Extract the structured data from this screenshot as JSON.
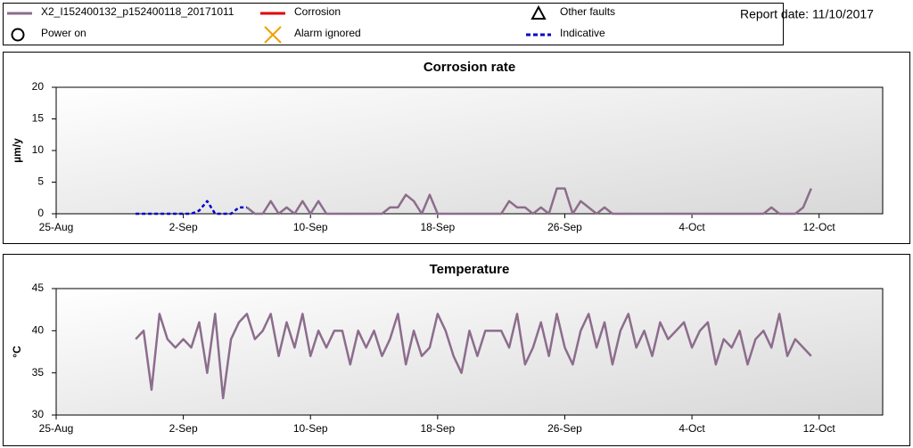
{
  "report_date": "Report date: 11/10/2017",
  "legend": {
    "items": [
      {
        "label": "X2_I152400132_p152400118_20171011",
        "symbol": "line",
        "color": "#8c6d8c"
      },
      {
        "label": "Corrosion",
        "symbol": "line",
        "color": "#e00000"
      },
      {
        "label": "Other faults",
        "symbol": "triangle",
        "color": "#000000"
      },
      {
        "label": "Power on",
        "symbol": "circle",
        "color": "#000000"
      },
      {
        "label": "Alarm ignored",
        "symbol": "cross",
        "color": "#f0a000"
      },
      {
        "label": "Indicative",
        "symbol": "dashed",
        "color": "#0000cc"
      }
    ]
  },
  "chart_data": [
    {
      "type": "line",
      "title": "Corrosion rate",
      "y_label": "µm/y",
      "xlim": [
        0,
        52
      ],
      "xticks": [
        {
          "value": 0,
          "label": "25-Aug"
        },
        {
          "value": 8,
          "label": "2-Sep"
        },
        {
          "value": 16,
          "label": "10-Sep"
        },
        {
          "value": 24,
          "label": "18-Sep"
        },
        {
          "value": 32,
          "label": "26-Sep"
        },
        {
          "value": 40,
          "label": "4-Oct"
        },
        {
          "value": 48,
          "label": "12-Oct"
        }
      ],
      "ylim": [
        0,
        20
      ],
      "yticks": [
        0,
        5,
        10,
        15,
        20
      ],
      "grid": false,
      "x": [
        5,
        5.5,
        6,
        6.5,
        7,
        7.5,
        8,
        8.5,
        9,
        9.5,
        10,
        10.5,
        11,
        11.5,
        12,
        12.5,
        13,
        13.5,
        14,
        14.5,
        15,
        15.5,
        16,
        16.5,
        17,
        17.5,
        18,
        18.5,
        19,
        19.5,
        20,
        20.5,
        21,
        21.5,
        22,
        22.5,
        23,
        23.5,
        24,
        24.5,
        25,
        25.5,
        26,
        26.5,
        27,
        27.5,
        28,
        28.5,
        29,
        29.5,
        30,
        30.5,
        31,
        31.5,
        32,
        32.5,
        33,
        33.5,
        34,
        34.5,
        35,
        35.5,
        36,
        36.5,
        37,
        37.5,
        38,
        38.5,
        39,
        39.5,
        40,
        40.5,
        41,
        41.5,
        42,
        42.5,
        43,
        43.5,
        44,
        44.5,
        45,
        45.5,
        46,
        46.5,
        47,
        47.5
      ],
      "series": [
        {
          "name": "X2_I152400132_p152400118_20171011",
          "color": "#8c6d8c",
          "dash": false,
          "values": [
            null,
            null,
            null,
            null,
            null,
            null,
            null,
            null,
            null,
            null,
            null,
            null,
            null,
            null,
            1,
            0,
            0,
            2,
            0,
            1,
            0,
            2,
            0,
            2,
            0,
            0,
            0,
            0,
            0,
            0,
            0,
            0,
            1,
            1,
            3,
            2,
            0,
            3,
            0,
            0,
            0,
            0,
            0,
            0,
            0,
            0,
            0,
            2,
            1,
            1,
            0,
            1,
            0,
            4,
            4,
            0,
            2,
            1,
            0,
            1,
            0,
            0,
            0,
            0,
            0,
            0,
            0,
            0,
            0,
            0,
            0,
            0,
            0,
            0,
            0,
            0,
            0,
            0,
            0,
            0,
            1,
            0,
            0,
            0,
            1,
            4
          ]
        },
        {
          "name": "Indicative",
          "color": "#0000cc",
          "dash": true,
          "values": [
            0,
            0,
            0,
            0,
            0,
            0,
            0,
            0,
            0.5,
            2,
            0,
            0,
            0,
            1,
            1,
            null,
            null,
            null,
            null,
            null,
            null,
            null,
            null,
            null,
            null,
            null,
            null,
            null,
            null,
            null,
            null,
            null,
            null,
            null,
            null,
            null,
            null,
            null,
            null,
            null,
            null,
            null,
            null,
            null,
            null,
            null,
            null,
            null,
            null,
            null,
            null,
            null,
            null,
            null,
            null,
            null,
            null,
            null,
            null,
            null,
            null,
            null,
            null,
            null,
            null,
            null,
            null,
            null,
            null,
            null,
            null,
            null,
            null,
            null,
            null,
            null,
            null,
            null,
            null,
            null,
            null,
            null,
            null,
            null,
            null,
            null
          ]
        }
      ]
    },
    {
      "type": "line",
      "title": "Temperature",
      "y_label": "°C",
      "xlim": [
        0,
        52
      ],
      "xticks": [
        {
          "value": 0,
          "label": "25-Aug"
        },
        {
          "value": 8,
          "label": "2-Sep"
        },
        {
          "value": 16,
          "label": "10-Sep"
        },
        {
          "value": 24,
          "label": "18-Sep"
        },
        {
          "value": 32,
          "label": "26-Sep"
        },
        {
          "value": 40,
          "label": "4-Oct"
        },
        {
          "value": 48,
          "label": "12-Oct"
        }
      ],
      "ylim": [
        30,
        45
      ],
      "yticks": [
        30,
        35,
        40,
        45
      ],
      "grid": false,
      "x": [
        5,
        5.5,
        6,
        6.5,
        7,
        7.5,
        8,
        8.5,
        9,
        9.5,
        10,
        10.5,
        11,
        11.5,
        12,
        12.5,
        13,
        13.5,
        14,
        14.5,
        15,
        15.5,
        16,
        16.5,
        17,
        17.5,
        18,
        18.5,
        19,
        19.5,
        20,
        20.5,
        21,
        21.5,
        22,
        22.5,
        23,
        23.5,
        24,
        24.5,
        25,
        25.5,
        26,
        26.5,
        27,
        27.5,
        28,
        28.5,
        29,
        29.5,
        30,
        30.5,
        31,
        31.5,
        32,
        32.5,
        33,
        33.5,
        34,
        34.5,
        35,
        35.5,
        36,
        36.5,
        37,
        37.5,
        38,
        38.5,
        39,
        39.5,
        40,
        40.5,
        41,
        41.5,
        42,
        42.5,
        43,
        43.5,
        44,
        44.5,
        45,
        45.5,
        46,
        46.5,
        47,
        47.5
      ],
      "series": [
        {
          "name": "X2_I152400132_p152400118_20171011",
          "color": "#8c6d8c",
          "dash": false,
          "values": [
            39,
            40,
            33,
            42,
            39,
            38,
            39,
            38,
            41,
            35,
            42,
            32,
            39,
            41,
            42,
            39,
            40,
            42,
            37,
            41,
            38,
            42,
            37,
            40,
            38,
            40,
            40,
            36,
            40,
            38,
            40,
            37,
            39,
            42,
            36,
            40,
            37,
            38,
            42,
            40,
            37,
            35,
            40,
            37,
            40,
            40,
            40,
            38,
            42,
            36,
            38,
            41,
            37,
            42,
            38,
            36,
            40,
            42,
            38,
            41,
            36,
            40,
            42,
            38,
            40,
            37,
            41,
            39,
            40,
            41,
            38,
            40,
            41,
            36,
            39,
            38,
            40,
            36,
            39,
            40,
            38,
            42,
            37,
            39,
            38,
            37
          ]
        }
      ]
    }
  ]
}
